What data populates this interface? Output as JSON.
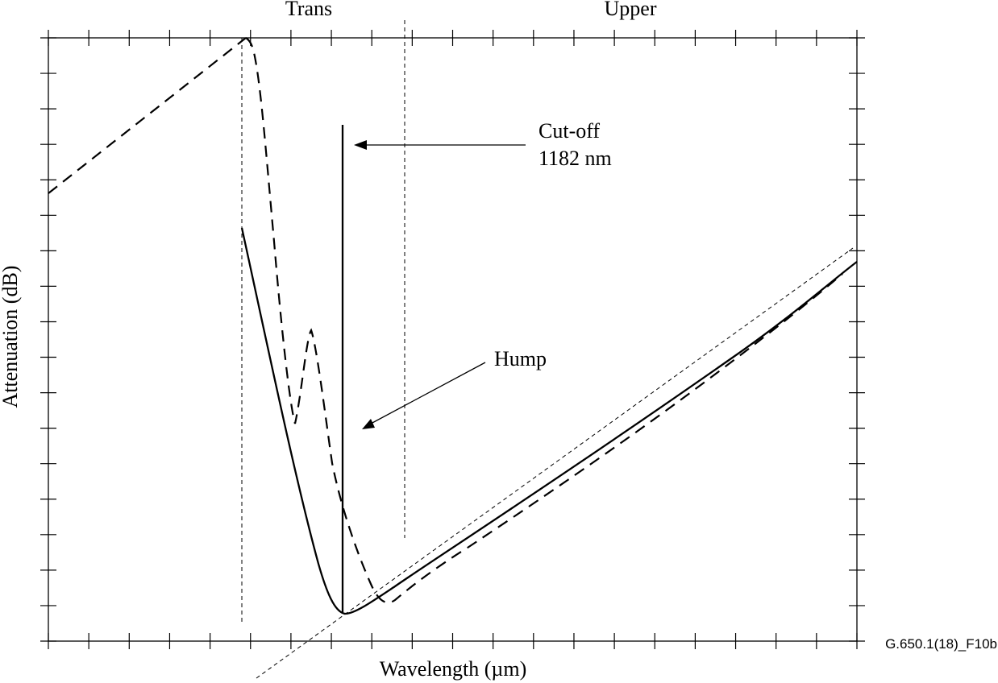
{
  "chart_data": {
    "type": "line",
    "title": "",
    "xlabel": "Wavelength (µm)",
    "ylabel": "Attenuation (dB)",
    "regions": [
      {
        "label": "Trans"
      },
      {
        "label": "Upper"
      }
    ],
    "annotations": [
      {
        "id": "cutoff",
        "lines": [
          "Cut-off",
          "1182 nm"
        ]
      },
      {
        "id": "hump",
        "lines": [
          "Hump"
        ]
      }
    ],
    "figure_id": "G.650.1(18)_F10b",
    "grid": false,
    "legend": "none",
    "x_ticks_count": 20,
    "y_ticks_count": 17,
    "colors": {
      "line": "#000000",
      "background": "#ffffff"
    }
  }
}
